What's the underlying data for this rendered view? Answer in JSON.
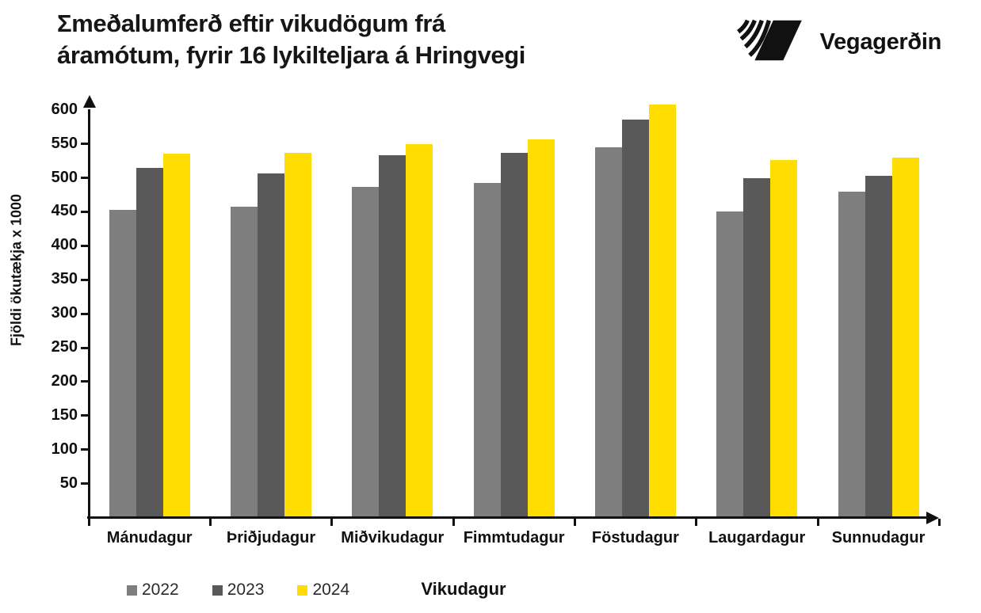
{
  "header": {
    "title_line1": "Σmeðalumferð eftir vikudögum frá",
    "title_line2": "áramótum, fyrir 16 lykilteljara á Hringvegi",
    "logo_text": "Vegagerðin"
  },
  "chart_data": {
    "type": "bar",
    "title": "Σmeðalumferð eftir vikudögum frá áramótum, fyrir 16 lykilteljara á Hringvegi",
    "xlabel": "Vikudagur",
    "ylabel": "Fjöldi ökutækja x 1000",
    "ylim": [
      0,
      600
    ],
    "ytick_step": 50,
    "yticks": [
      50,
      100,
      150,
      200,
      250,
      300,
      350,
      400,
      450,
      500,
      550,
      600
    ],
    "grid": false,
    "legend_position": "bottom-left",
    "categories": [
      "Mánudagur",
      "Þriðjudagur",
      "Miðvikudagur",
      "Fimmtudagur",
      "Föstudagur",
      "Laugardagur",
      "Sunnudagur"
    ],
    "series": [
      {
        "name": "2022",
        "color": "#7E7E7E",
        "values": [
          453,
          458,
          487,
          492,
          545,
          450,
          480
        ]
      },
      {
        "name": "2023",
        "color": "#595959",
        "values": [
          514,
          506,
          533,
          537,
          586,
          500,
          503
        ]
      },
      {
        "name": "2024",
        "color": "#FFDD00",
        "values": [
          536,
          537,
          550,
          557,
          608,
          526,
          530
        ]
      }
    ]
  }
}
